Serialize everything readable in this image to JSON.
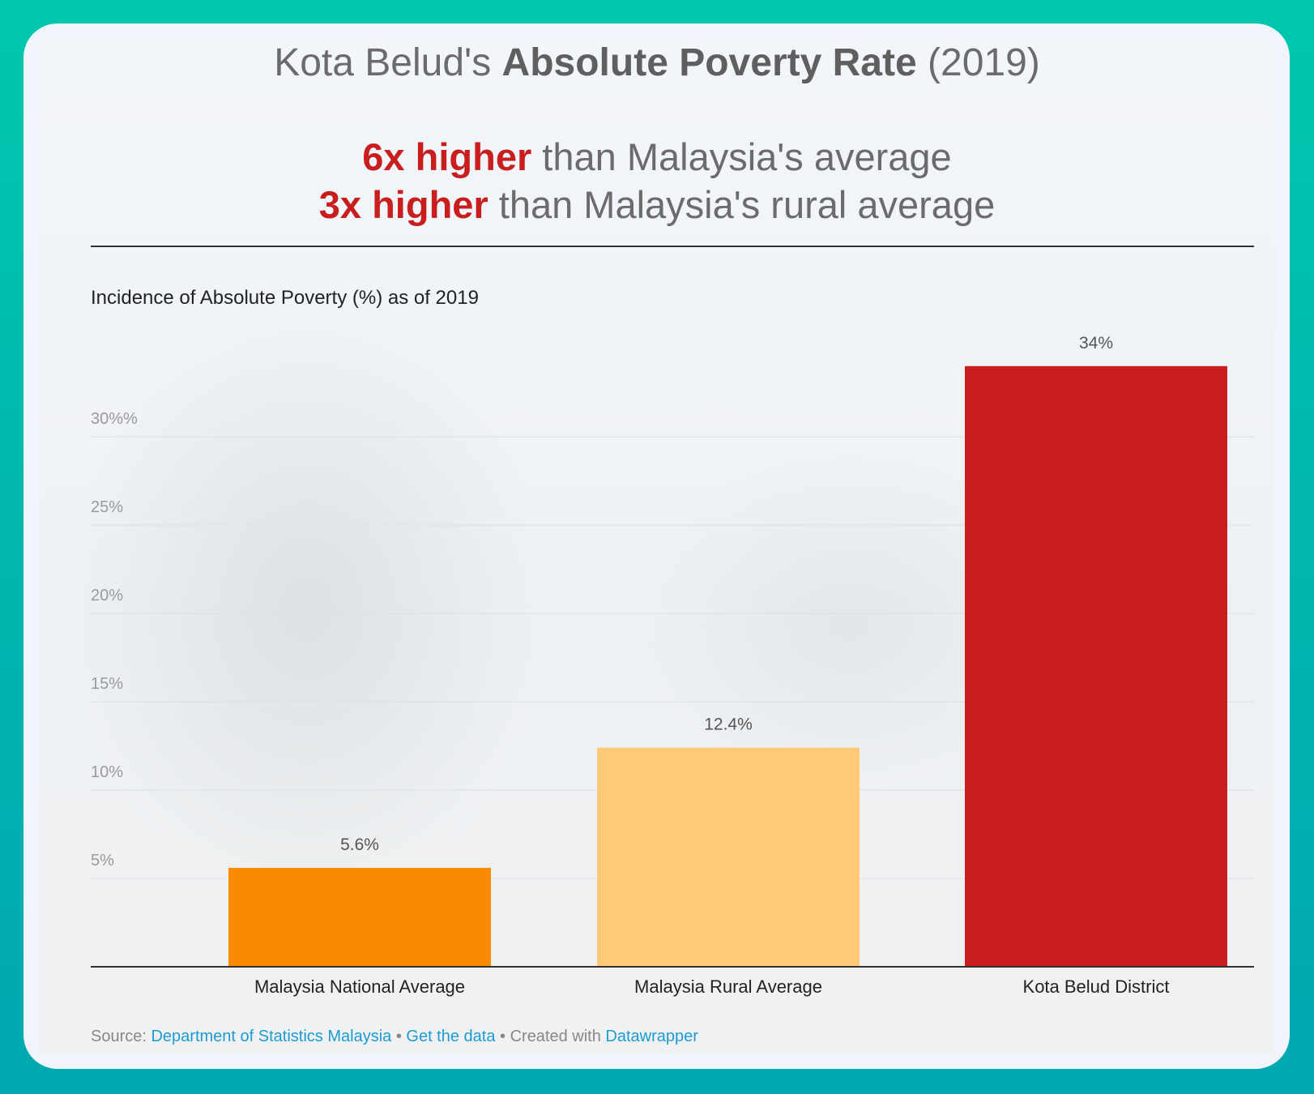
{
  "title": {
    "prefix": "Kota Belud's ",
    "bold": "Absolute Poverty Rate",
    "suffix": " (2019)"
  },
  "subtitle": [
    {
      "highlight": "6x higher",
      "rest": " than Malaysia's average"
    },
    {
      "highlight": "3x higher",
      "rest": " than Malaysia's rural average"
    }
  ],
  "chart_data": {
    "type": "bar",
    "title": "Incidence of Absolute Poverty (%) as of 2019",
    "categories": [
      "Malaysia National Average",
      "Malaysia Rural Average",
      "Kota Belud District"
    ],
    "values": [
      5.6,
      12.4,
      34
    ],
    "value_labels": [
      "5.6%",
      "12.4%",
      "34%"
    ],
    "colors": [
      "#f98b00",
      "#ffc978",
      "#c81e1e"
    ],
    "yticks": [
      5,
      10,
      15,
      20,
      25,
      30
    ],
    "ytick_labels": [
      "5%",
      "10%",
      "15%",
      "20%",
      "25%",
      "30%%"
    ],
    "ylim": [
      0,
      34
    ],
    "grid": true
  },
  "source": {
    "label": "Source: ",
    "link1": "Department of Statistics Malaysia",
    "sep1": " • ",
    "link2": "Get the data",
    "sep2": " • Created with ",
    "link3": "Datawrapper"
  },
  "colors": {
    "accent": "#c81e1e",
    "link": "#1d9bd1",
    "frame": "#00c0ae"
  }
}
